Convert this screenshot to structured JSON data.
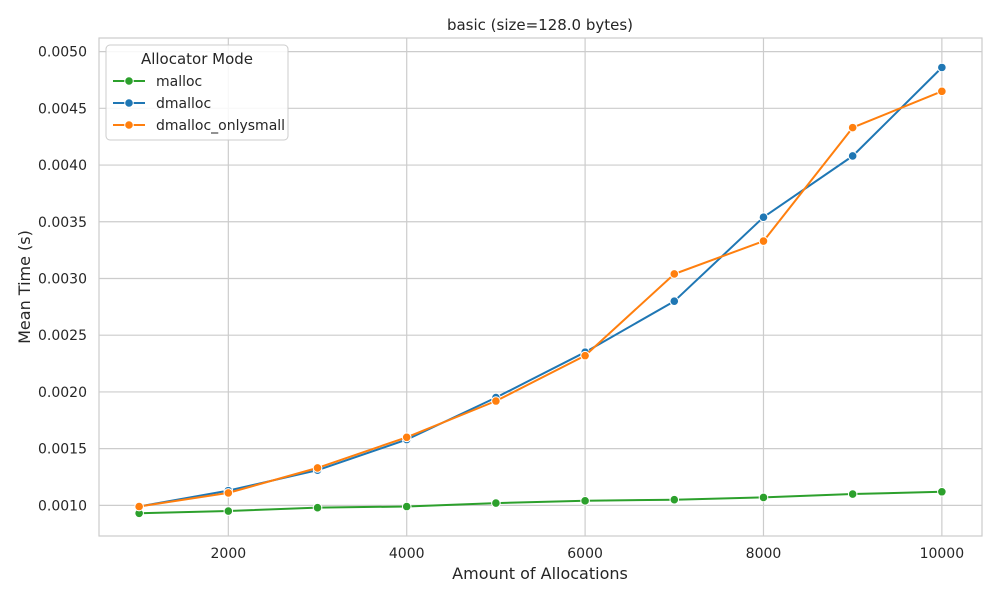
{
  "chart_data": {
    "type": "line",
    "title": "basic (size=128.0 bytes)",
    "xlabel": "Amount of Allocations",
    "ylabel": "Mean Time (s)",
    "xlim": [
      550,
      10450
    ],
    "ylim": [
      0.00073,
      0.00512
    ],
    "xticks": [
      2000,
      4000,
      6000,
      8000,
      10000
    ],
    "xtick_labels": [
      "2000",
      "4000",
      "6000",
      "8000",
      "10000"
    ],
    "yticks": [
      0.001,
      0.0015,
      0.002,
      0.0025,
      0.003,
      0.0035,
      0.004,
      0.0045,
      0.005
    ],
    "ytick_labels": [
      "0.0010",
      "0.0015",
      "0.0020",
      "0.0025",
      "0.0030",
      "0.0035",
      "0.0040",
      "0.0045",
      "0.0050"
    ],
    "grid": true,
    "legend": {
      "title": "Allocator Mode",
      "placement": "top-left"
    },
    "x": [
      1000,
      2000,
      3000,
      4000,
      5000,
      6000,
      7000,
      8000,
      9000,
      10000
    ],
    "series": [
      {
        "name": "malloc",
        "color": "#2ca02c",
        "values": [
          0.00093,
          0.00095,
          0.00098,
          0.00099,
          0.00102,
          0.00104,
          0.00105,
          0.00107,
          0.0011,
          0.00112
        ]
      },
      {
        "name": "dmalloc",
        "color": "#1f77b4",
        "values": [
          0.00099,
          0.00113,
          0.00131,
          0.00158,
          0.00195,
          0.00235,
          0.0028,
          0.00354,
          0.00408,
          0.00486
        ]
      },
      {
        "name": "dmalloc_onlysmall",
        "color": "#ff7f0e",
        "values": [
          0.00099,
          0.00111,
          0.00133,
          0.0016,
          0.00192,
          0.00232,
          0.00304,
          0.00333,
          0.00433,
          0.00465
        ]
      }
    ]
  }
}
